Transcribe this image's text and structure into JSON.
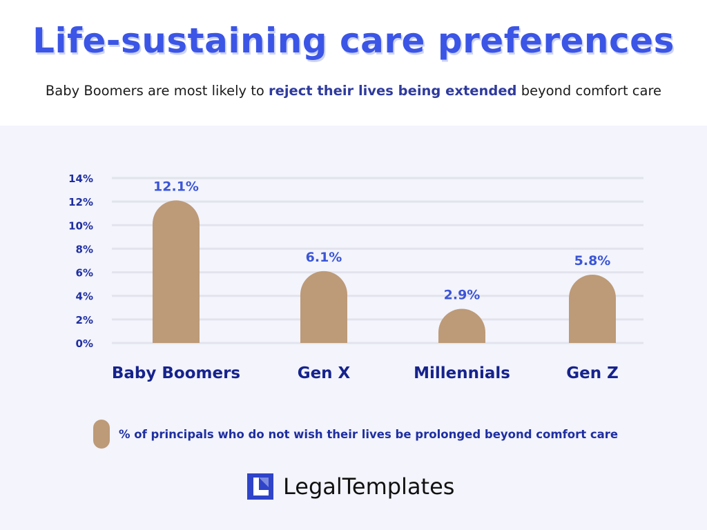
{
  "header": {
    "title": "Life-sustaining care preferences",
    "subtitle_pre": "Baby Boomers are most likely to ",
    "subtitle_highlight": "reject their lives being extended",
    "subtitle_post": " beyond comfort care"
  },
  "colors": {
    "title": "#3b55e6",
    "highlight": "#2e3a9c",
    "bar": "#bd9a78",
    "label": "#1f2fa0",
    "value_label": "#3b55d6",
    "grid": "#e2e3ec",
    "panel_bg": "#f3f4fc"
  },
  "chart_data": {
    "type": "bar",
    "title": "Life-sustaining care preferences",
    "categories": [
      "Baby Boomers",
      "Gen X",
      "Millennials",
      "Gen Z"
    ],
    "values": [
      12.1,
      6.1,
      2.9,
      5.8
    ],
    "value_labels": [
      "12.1%",
      "6.1%",
      "2.9%",
      "5.8%"
    ],
    "yticks": [
      0,
      2,
      4,
      6,
      8,
      10,
      12,
      14
    ],
    "ytick_labels": [
      "0%",
      "2%",
      "4%",
      "6%",
      "8%",
      "10%",
      "12%",
      "14%"
    ],
    "ylim": [
      0,
      14
    ],
    "xlabel": "",
    "ylabel": "",
    "grid": true,
    "legend": "% of principals who do not wish their lives be prolonged beyond comfort care"
  },
  "legend": {
    "label": "% of principals who do not wish their lives be prolonged beyond comfort care"
  },
  "brand": {
    "name": "LegalTemplates",
    "icon": "legaltemplates-logo-icon"
  }
}
